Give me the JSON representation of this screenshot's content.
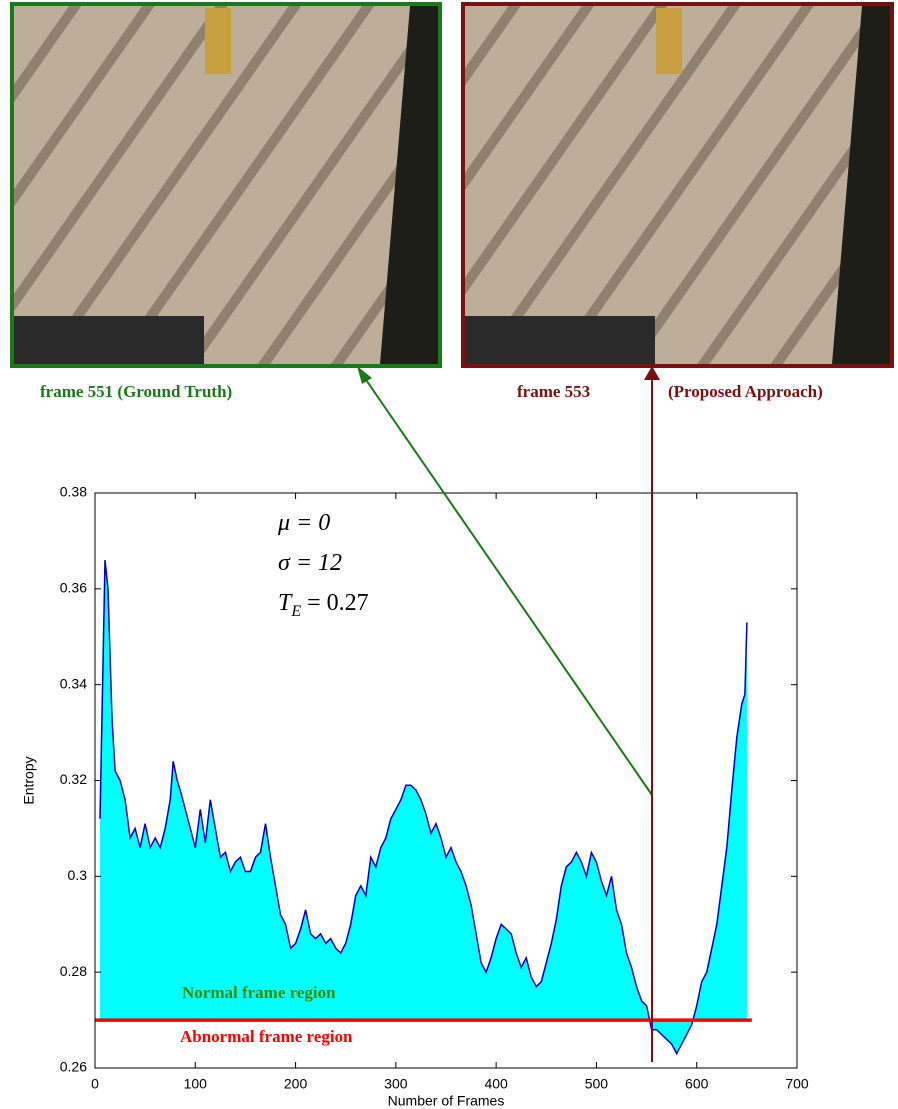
{
  "chart_data": {
    "type": "area",
    "captions": {
      "left": "frame 551 (Ground Truth)",
      "right_frame": "frame 553",
      "right_method": "(Proposed Approach)"
    },
    "annotation": {
      "mu": "μ = 0",
      "sigma": "σ = 12",
      "te_main": "T",
      "te_sub": "E",
      "te_rest": " = 0.27"
    },
    "x_label": "Number of Frames",
    "y_label": "Entropy",
    "region_labels": {
      "normal": "Normal frame region",
      "normal_color": "#3a8a00",
      "abnormal": "Abnormal frame region",
      "abnormal_color": "#ff0000"
    },
    "threshold": 0.27,
    "threshold_color": "#ff0000",
    "color": "#00ffff",
    "line_color": "#0000cc",
    "x": [
      5,
      10,
      13,
      17,
      20,
      25,
      30,
      35,
      40,
      45,
      50,
      55,
      60,
      65,
      70,
      75,
      78,
      82,
      85,
      90,
      95,
      100,
      105,
      110,
      115,
      120,
      125,
      130,
      135,
      140,
      145,
      150,
      155,
      160,
      165,
      170,
      175,
      180,
      185,
      190,
      195,
      200,
      205,
      210,
      215,
      220,
      225,
      230,
      235,
      240,
      245,
      250,
      255,
      260,
      265,
      270,
      275,
      280,
      285,
      290,
      295,
      300,
      305,
      310,
      315,
      320,
      325,
      330,
      335,
      340,
      345,
      350,
      355,
      360,
      365,
      370,
      375,
      380,
      385,
      390,
      395,
      400,
      405,
      410,
      415,
      420,
      425,
      430,
      435,
      440,
      445,
      450,
      455,
      460,
      465,
      470,
      475,
      480,
      485,
      490,
      495,
      500,
      505,
      510,
      515,
      520,
      525,
      530,
      535,
      540,
      545,
      550,
      553,
      555,
      560,
      565,
      570,
      575,
      580,
      585,
      590,
      595,
      600,
      605,
      610,
      615,
      620,
      625,
      630,
      635,
      640,
      645,
      648,
      650
    ],
    "values": [
      0.312,
      0.366,
      0.36,
      0.333,
      0.322,
      0.32,
      0.316,
      0.308,
      0.31,
      0.306,
      0.311,
      0.306,
      0.308,
      0.306,
      0.31,
      0.316,
      0.324,
      0.32,
      0.318,
      0.314,
      0.31,
      0.306,
      0.314,
      0.307,
      0.316,
      0.31,
      0.304,
      0.305,
      0.301,
      0.303,
      0.304,
      0.301,
      0.301,
      0.304,
      0.305,
      0.311,
      0.304,
      0.298,
      0.292,
      0.29,
      0.285,
      0.286,
      0.289,
      0.293,
      0.288,
      0.287,
      0.288,
      0.286,
      0.287,
      0.285,
      0.284,
      0.286,
      0.29,
      0.296,
      0.298,
      0.296,
      0.304,
      0.302,
      0.306,
      0.308,
      0.312,
      0.314,
      0.316,
      0.319,
      0.319,
      0.318,
      0.316,
      0.313,
      0.309,
      0.311,
      0.308,
      0.304,
      0.306,
      0.303,
      0.301,
      0.298,
      0.294,
      0.288,
      0.282,
      0.28,
      0.283,
      0.287,
      0.29,
      0.289,
      0.288,
      0.284,
      0.281,
      0.283,
      0.279,
      0.277,
      0.278,
      0.282,
      0.286,
      0.291,
      0.298,
      0.302,
      0.303,
      0.305,
      0.303,
      0.3,
      0.305,
      0.303,
      0.299,
      0.296,
      0.3,
      0.293,
      0.29,
      0.284,
      0.281,
      0.277,
      0.274,
      0.273,
      0.27,
      0.268,
      0.268,
      0.267,
      0.266,
      0.265,
      0.263,
      0.265,
      0.267,
      0.269,
      0.273,
      0.278,
      0.28,
      0.285,
      0.29,
      0.298,
      0.306,
      0.318,
      0.329,
      0.336,
      0.338,
      0.353
    ],
    "xlim": [
      0,
      700
    ],
    "xticks": [
      0,
      100,
      200,
      300,
      400,
      500,
      600,
      700
    ],
    "ylim": [
      0.26,
      0.38
    ],
    "yticks": [
      0.26,
      0.28,
      0.3,
      0.32,
      0.34,
      0.36,
      0.38
    ]
  }
}
